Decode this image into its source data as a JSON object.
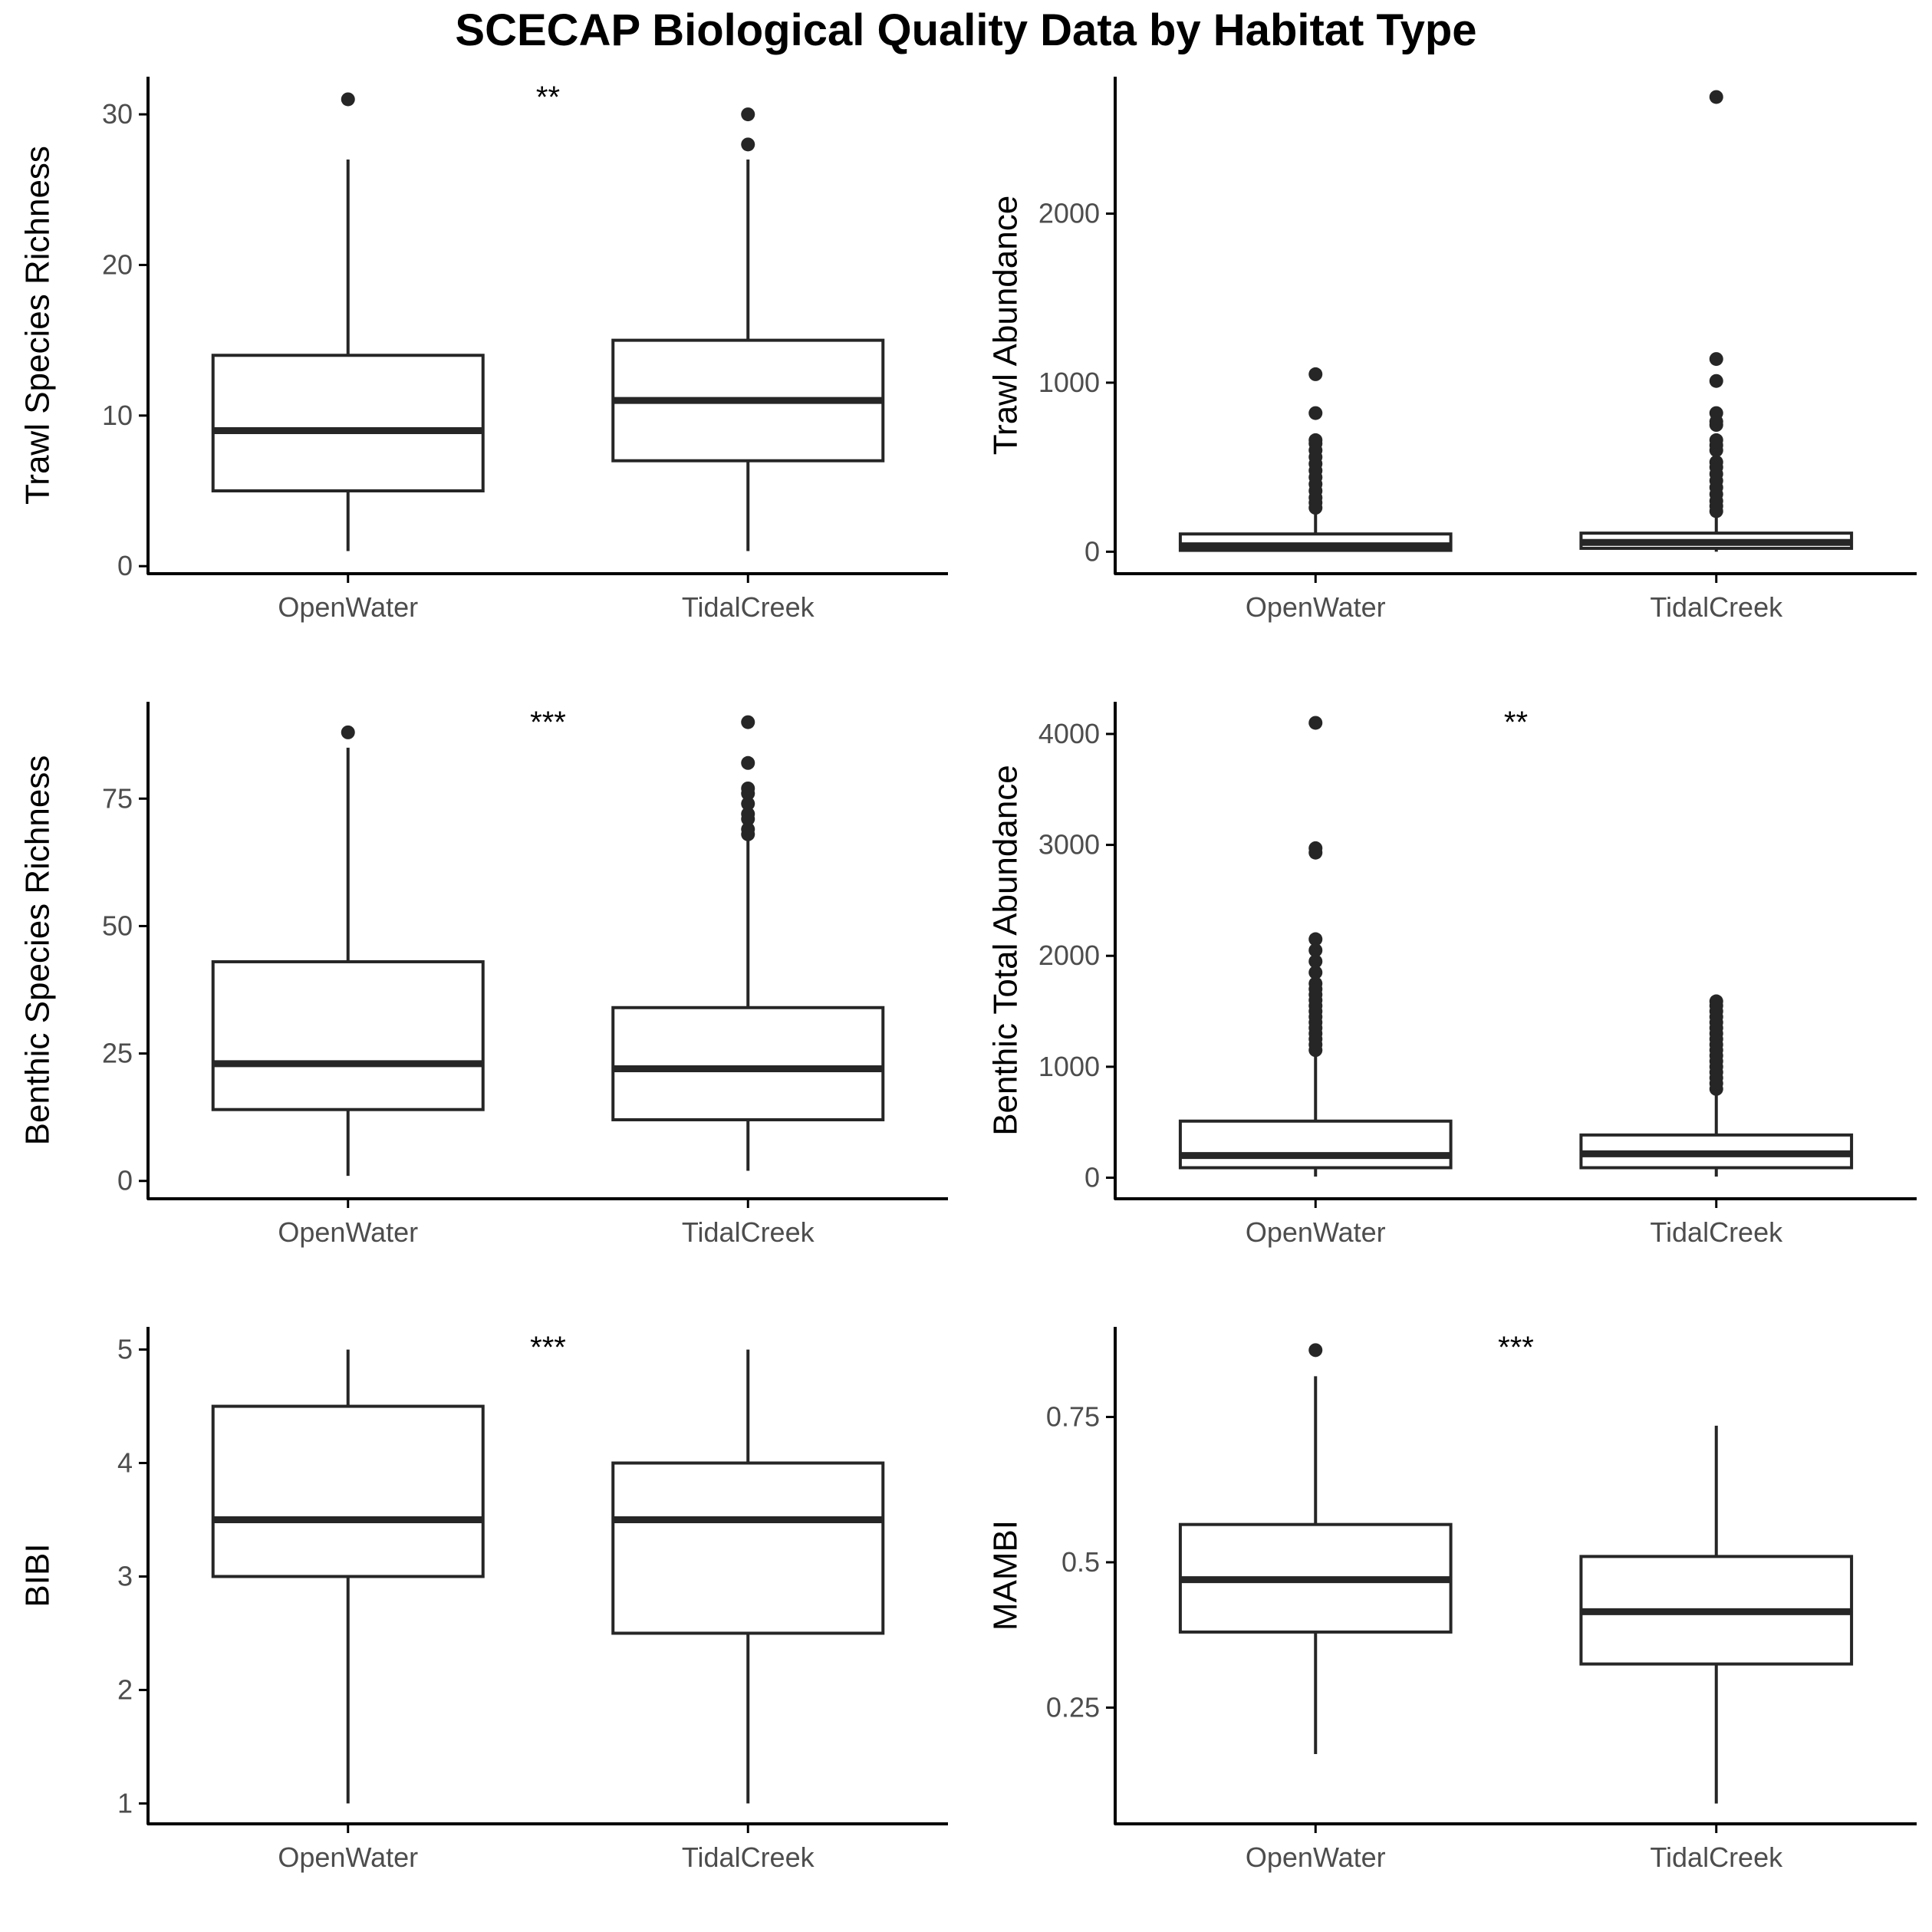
{
  "title": "SCECAP Biological Quality Data by Habitat Type",
  "colors": {
    "box": "#262626",
    "points": "#262626",
    "axis": "#000000",
    "tick_text": "#4d4d4d"
  },
  "chart_data": [
    {
      "type": "box",
      "ylabel": "Trawl Species Richness",
      "categories": [
        "OpenWater",
        "TidalCreek"
      ],
      "ylim": [
        -0.5,
        32.5
      ],
      "yticks": [
        0,
        10,
        20,
        30
      ],
      "significance": "**",
      "boxes": [
        {
          "category": "OpenWater",
          "whisker_low": 1,
          "q1": 5,
          "median": 9,
          "q3": 14,
          "whisker_high": 27,
          "outliers": [
            31
          ]
        },
        {
          "category": "TidalCreek",
          "whisker_low": 1,
          "q1": 7,
          "median": 11,
          "q3": 15,
          "whisker_high": 27,
          "outliers": [
            28,
            30
          ]
        }
      ]
    },
    {
      "type": "box",
      "ylabel": "Trawl Abundance",
      "categories": [
        "OpenWater",
        "TidalCreek"
      ],
      "ylim": [
        -130,
        2810
      ],
      "yticks": [
        0,
        1000,
        2000
      ],
      "significance": "",
      "boxes": [
        {
          "category": "OpenWater",
          "whisker_low": 0,
          "q1": 8,
          "median": 35,
          "q3": 105,
          "whisker_high": 250,
          "outliers": [
            260,
            290,
            320,
            360,
            400,
            440,
            480,
            520,
            560,
            600,
            640,
            660,
            820,
            1050
          ]
        },
        {
          "category": "TidalCreek",
          "whisker_low": 0,
          "q1": 20,
          "median": 55,
          "q3": 110,
          "whisker_high": 230,
          "outliers": [
            240,
            270,
            300,
            340,
            380,
            420,
            460,
            500,
            530,
            600,
            630,
            660,
            750,
            770,
            820,
            1010,
            1140,
            2690
          ]
        }
      ]
    },
    {
      "type": "box",
      "ylabel": "Benthic Species Richness",
      "categories": [
        "OpenWater",
        "TidalCreek"
      ],
      "ylim": [
        -3.5,
        94
      ],
      "yticks": [
        0,
        25,
        50,
        75
      ],
      "significance": "***",
      "boxes": [
        {
          "category": "OpenWater",
          "whisker_low": 1,
          "q1": 14,
          "median": 23,
          "q3": 43,
          "whisker_high": 85,
          "outliers": [
            88
          ]
        },
        {
          "category": "TidalCreek",
          "whisker_low": 2,
          "q1": 12,
          "median": 22,
          "q3": 34,
          "whisker_high": 67,
          "outliers": [
            68,
            69,
            71,
            72,
            74,
            76,
            77,
            82,
            90
          ]
        }
      ]
    },
    {
      "type": "box",
      "ylabel": "Benthic Total Abundance",
      "categories": [
        "OpenWater",
        "TidalCreek"
      ],
      "ylim": [
        -190,
        4290
      ],
      "yticks": [
        0,
        1000,
        2000,
        3000,
        4000
      ],
      "significance": "**",
      "boxes": [
        {
          "category": "OpenWater",
          "whisker_low": 10,
          "q1": 90,
          "median": 200,
          "q3": 510,
          "whisker_high": 1120,
          "outliers": [
            1150,
            1200,
            1250,
            1300,
            1350,
            1400,
            1450,
            1500,
            1550,
            1600,
            1650,
            1700,
            1750,
            1850,
            1950,
            2050,
            2150,
            2930,
            2970,
            4100
          ]
        },
        {
          "category": "TidalCreek",
          "whisker_low": 10,
          "q1": 90,
          "median": 215,
          "q3": 385,
          "whisker_high": 780,
          "outliers": [
            800,
            850,
            900,
            950,
            1000,
            1050,
            1100,
            1150,
            1200,
            1250,
            1300,
            1350,
            1400,
            1450,
            1500,
            1550,
            1590
          ]
        }
      ]
    },
    {
      "type": "box",
      "ylabel": "BIBI",
      "categories": [
        "OpenWater",
        "TidalCreek"
      ],
      "ylim": [
        0.82,
        5.2
      ],
      "yticks": [
        1,
        2,
        3,
        4,
        5
      ],
      "significance": "***",
      "boxes": [
        {
          "category": "OpenWater",
          "whisker_low": 1,
          "q1": 3,
          "median": 3.5,
          "q3": 4.5,
          "whisker_high": 5,
          "outliers": []
        },
        {
          "category": "TidalCreek",
          "whisker_low": 1,
          "q1": 2.5,
          "median": 3.5,
          "q3": 4,
          "whisker_high": 5,
          "outliers": []
        }
      ]
    },
    {
      "type": "box",
      "ylabel": "MAMBI",
      "categories": [
        "OpenWater",
        "TidalCreek"
      ],
      "ylim": [
        0.05,
        0.905
      ],
      "yticks": [
        0.25,
        0.5,
        0.75
      ],
      "significance": "***",
      "boxes": [
        {
          "category": "OpenWater",
          "whisker_low": 0.17,
          "q1": 0.38,
          "median": 0.47,
          "q3": 0.565,
          "whisker_high": 0.82,
          "outliers": [
            0.865
          ]
        },
        {
          "category": "TidalCreek",
          "whisker_low": 0.085,
          "q1": 0.325,
          "median": 0.415,
          "q3": 0.51,
          "whisker_high": 0.735,
          "outliers": []
        }
      ]
    }
  ]
}
